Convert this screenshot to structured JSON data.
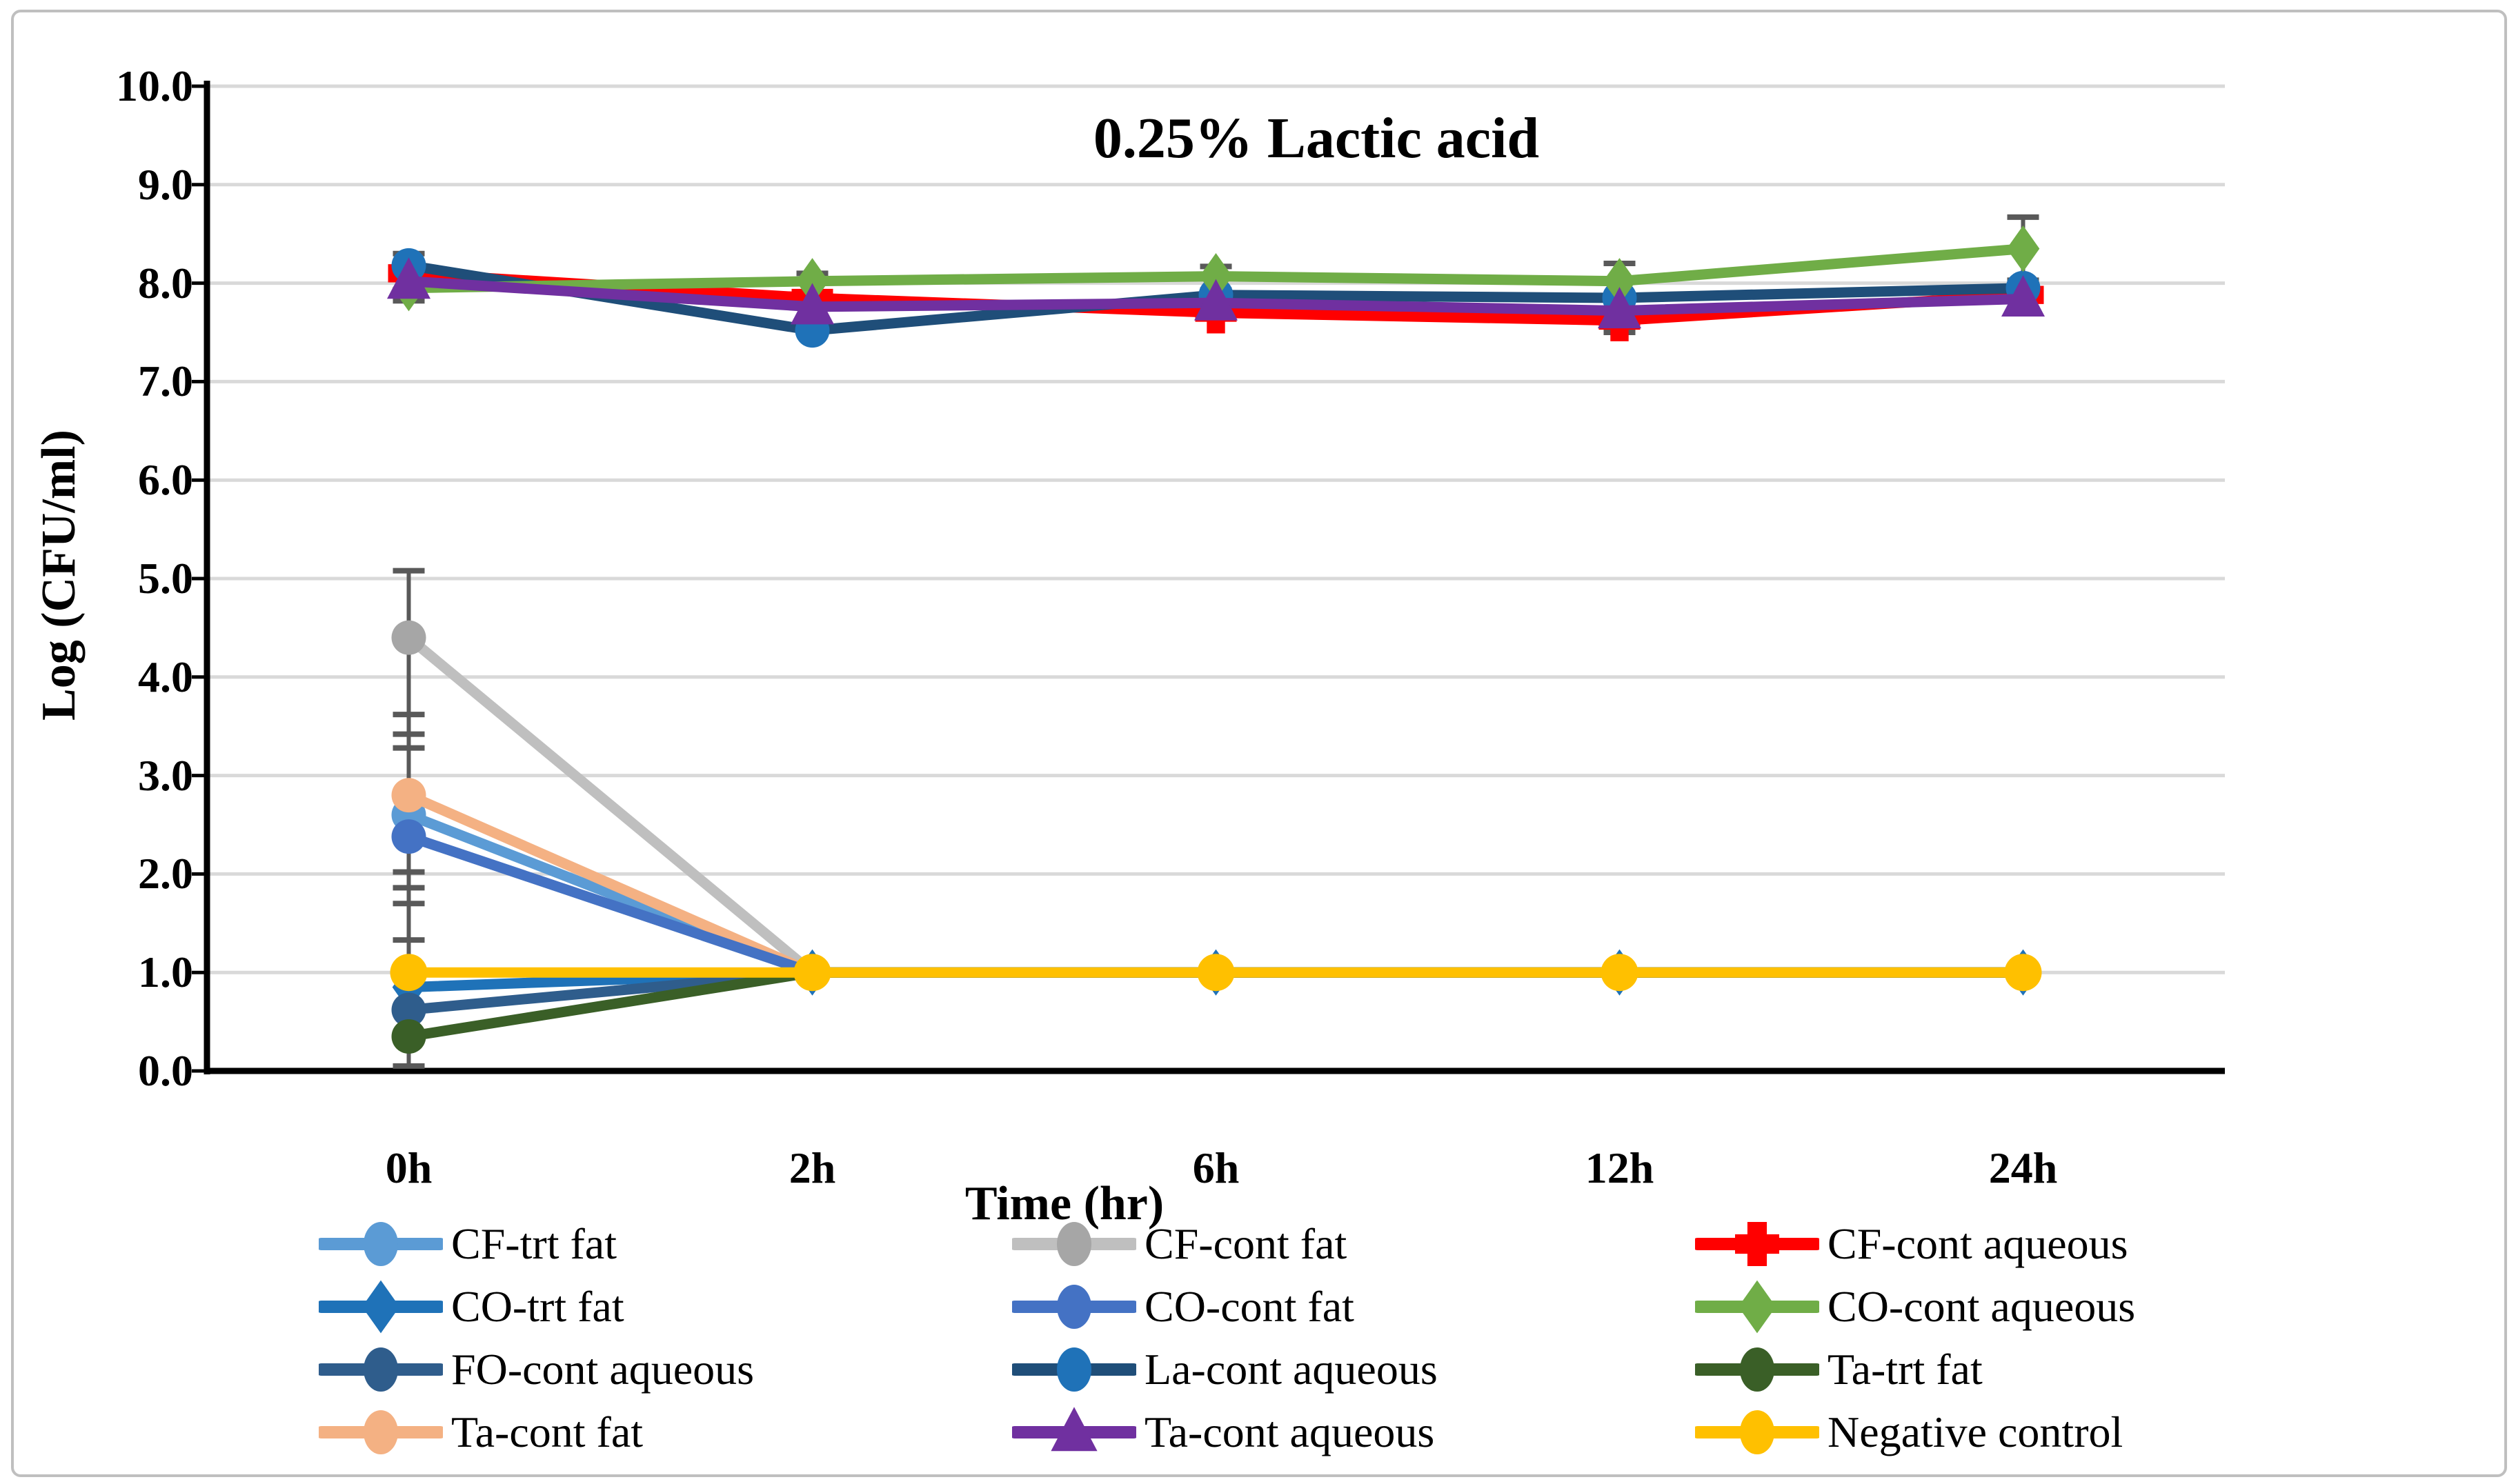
{
  "frame": {
    "border_color": "#BFBFBF",
    "background": "#FFFFFF"
  },
  "chart_data": {
    "type": "line",
    "title": "0.25% Lactic acid",
    "xlabel": "Time (hr)",
    "ylabel": "Log (CFU/ml)",
    "categories": [
      "0h",
      "2h",
      "6h",
      "12h",
      "24h"
    ],
    "ylim": [
      0,
      10
    ],
    "yticks": [
      "10.0",
      "9.0",
      "8.0",
      "7.0",
      "6.0",
      "5.0",
      "4.0",
      "3.0",
      "2.0",
      "1.0",
      "0.0"
    ],
    "grid": true,
    "gridline_color": "#D9D9D9",
    "axis_color": "#000000",
    "error_bar_color": "#595959",
    "legend_position": "bottom",
    "series": [
      {
        "name": "CF-trt fat",
        "color": "#5B9BD5",
        "marker": "circle",
        "values": [
          2.6,
          1.0,
          1.0,
          1.0,
          1.0
        ]
      },
      {
        "name": "CF-cont fat",
        "color": "#BFBFBF",
        "marker": "circle",
        "marker_color": "#A6A6A6",
        "values": [
          4.4,
          1.0,
          1.0,
          1.0,
          1.0
        ]
      },
      {
        "name": "CF-cont aqueous",
        "color": "#FF0000",
        "marker": "plus",
        "values": [
          8.1,
          7.85,
          7.7,
          7.62,
          7.88
        ]
      },
      {
        "name": "CO-trt fat",
        "color": "#1F72B8",
        "marker": "diamond",
        "values": [
          0.85,
          1.0,
          1.0,
          1.0,
          1.0
        ]
      },
      {
        "name": "CO-cont fat",
        "color": "#4472C4",
        "marker": "circle",
        "values": [
          2.38,
          1.0,
          1.0,
          1.0,
          1.0
        ]
      },
      {
        "name": "CO-cont aqueous",
        "color": "#70AD47",
        "marker": "diamond",
        "values": [
          7.95,
          8.02,
          8.07,
          8.02,
          8.35
        ]
      },
      {
        "name": "FO-cont aqueous",
        "color": "#2F5D8C",
        "marker": "circle",
        "values": [
          0.62,
          1.0,
          1.0,
          1.0,
          1.0
        ]
      },
      {
        "name": "La-cont aqueous",
        "color": "#1F4E79",
        "marker": "circle",
        "marker_color": "#1F72B8",
        "values": [
          8.18,
          7.52,
          7.88,
          7.85,
          7.95
        ]
      },
      {
        "name": "Ta-trt fat",
        "color": "#3A5F27",
        "marker": "circle",
        "values": [
          0.35,
          1.0,
          1.0,
          1.0,
          1.0
        ]
      },
      {
        "name": "Ta-cont fat",
        "color": "#F4B183",
        "marker": "circle",
        "values": [
          2.8,
          1.0,
          1.0,
          1.0,
          1.0
        ]
      },
      {
        "name": "Ta-cont aqueous",
        "color": "#7030A0",
        "marker": "triangle",
        "values": [
          8.02,
          7.76,
          7.8,
          7.72,
          7.84
        ]
      },
      {
        "name": "Negative control",
        "color": "#FFC000",
        "marker": "circle",
        "values": [
          1.0,
          1.0,
          1.0,
          1.0,
          1.0
        ]
      }
    ],
    "draw_order": [
      1,
      0,
      9,
      4,
      3,
      6,
      8,
      2,
      7,
      5,
      10,
      11
    ],
    "error_bars": [
      {
        "cat": 0,
        "lo": 0.03,
        "hi": 5.08,
        "caps": [
          5.08,
          3.62,
          3.42,
          3.28,
          2.02,
          1.86,
          1.7,
          1.33,
          0.05
        ]
      },
      {
        "cat": 0,
        "lo": 7.82,
        "hi": 8.3,
        "caps": [
          7.82,
          8.3
        ]
      },
      {
        "cat": 1,
        "lo": 7.9,
        "hi": 8.1,
        "caps": [
          7.9,
          8.1
        ]
      },
      {
        "cat": 2,
        "lo": 7.93,
        "hi": 8.17,
        "caps": [
          7.93,
          8.17
        ]
      },
      {
        "cat": 3,
        "lo": 7.5,
        "hi": 8.2,
        "caps": [
          7.5,
          8.2
        ]
      },
      {
        "cat": 4,
        "lo": 8.03,
        "hi": 8.67,
        "caps": [
          8.03,
          8.67
        ]
      }
    ]
  }
}
